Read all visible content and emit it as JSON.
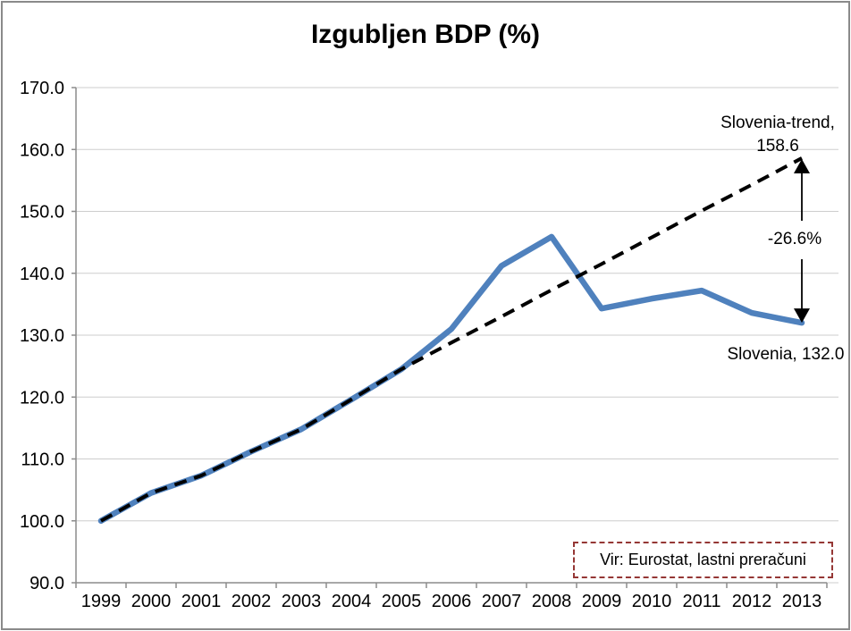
{
  "chart_data": {
    "type": "line",
    "title": "Izgubljen BDP (%)",
    "categories": [
      "1999",
      "2000",
      "2001",
      "2002",
      "2003",
      "2004",
      "2005",
      "2006",
      "2007",
      "2008",
      "2009",
      "2010",
      "2011",
      "2012",
      "2013"
    ],
    "series": [
      {
        "name": "Slovenia",
        "color": "#4F81BD",
        "style": "solid",
        "values": [
          100.0,
          104.5,
          107.3,
          111.2,
          114.8,
          119.6,
          124.5,
          131.0,
          141.2,
          145.9,
          134.3,
          135.9,
          137.2,
          133.6,
          132.0
        ]
      },
      {
        "name": "Slovenia-trend",
        "color": "#000000",
        "style": "dashed",
        "values": [
          100.0,
          104.5,
          107.3,
          111.2,
          114.8,
          119.6,
          124.5,
          128.8,
          133.0,
          137.3,
          141.5,
          145.8,
          150.1,
          154.3,
          158.6
        ]
      }
    ],
    "ylim": [
      90,
      170
    ],
    "ytick_step": 10,
    "ytick_format_decimals": 1,
    "grid": "horizontal-only",
    "legend": "none",
    "annotations": {
      "trend_label_line1": "Slovenia-trend,",
      "trend_label_line2": "158.6",
      "gap_label": "-26.6%",
      "series_end_label": "Slovenia, 132.0",
      "source_label": "Vir: Eurostat, lastni preračuni",
      "gap_arrow": {
        "at_category": "2013",
        "from_value": 158.6,
        "to_value": 132.0
      }
    }
  },
  "colors": {
    "slovenia_line": "#4F81BD",
    "trend_line": "#000000",
    "gridline": "#CDCDCD",
    "axis": "#8C8C8C",
    "arrow": "#000000",
    "source_box_border": "#953735",
    "frame": "#8A8A8A"
  }
}
